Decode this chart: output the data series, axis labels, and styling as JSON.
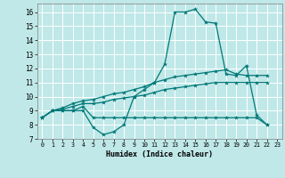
{
  "title": "",
  "xlabel": "Humidex (Indice chaleur)",
  "bg_color": "#c0e8e8",
  "grid_color": "#ffffff",
  "line_color": "#007878",
  "xlim": [
    -0.5,
    23.5
  ],
  "ylim": [
    7,
    16.6
  ],
  "xticks": [
    0,
    1,
    2,
    3,
    4,
    5,
    6,
    7,
    8,
    9,
    10,
    11,
    12,
    13,
    14,
    15,
    16,
    17,
    18,
    19,
    20,
    21,
    22,
    23
  ],
  "yticks": [
    7,
    8,
    9,
    10,
    11,
    12,
    13,
    14,
    15,
    16
  ],
  "curve1_x": [
    0,
    1,
    2,
    3,
    4,
    5,
    6,
    7,
    8,
    9,
    10,
    11,
    12,
    13,
    14,
    15,
    16,
    17,
    18,
    19,
    20,
    21,
    22
  ],
  "curve1_y": [
    8.5,
    9.0,
    9.0,
    9.0,
    9.0,
    7.8,
    7.3,
    7.5,
    8.0,
    10.0,
    10.5,
    11.0,
    12.3,
    16.0,
    16.0,
    16.2,
    15.3,
    15.2,
    11.6,
    11.5,
    12.2,
    8.7,
    8.0
  ],
  "curve2_x": [
    0,
    1,
    2,
    3,
    4,
    5,
    6,
    7,
    8,
    9,
    10,
    11,
    12,
    13,
    14,
    15,
    16,
    17,
    18,
    19,
    20,
    21,
    22
  ],
  "curve2_y": [
    8.5,
    9.0,
    9.0,
    9.0,
    9.3,
    8.5,
    8.5,
    8.5,
    8.5,
    8.5,
    8.5,
    8.5,
    8.5,
    8.5,
    8.5,
    8.5,
    8.5,
    8.5,
    8.5,
    8.5,
    8.5,
    8.5,
    8.0
  ],
  "curve3_x": [
    0,
    1,
    2,
    3,
    4,
    5,
    6,
    7,
    8,
    9,
    10,
    11,
    12,
    13,
    14,
    15,
    16,
    17,
    18,
    19,
    20,
    21,
    22
  ],
  "curve3_y": [
    8.5,
    9.0,
    9.2,
    9.5,
    9.7,
    9.8,
    10.0,
    10.2,
    10.3,
    10.5,
    10.7,
    11.0,
    11.2,
    11.4,
    11.5,
    11.6,
    11.7,
    11.8,
    11.9,
    11.6,
    11.5,
    11.5,
    11.5
  ],
  "curve4_x": [
    0,
    1,
    2,
    3,
    4,
    5,
    6,
    7,
    8,
    9,
    10,
    11,
    12,
    13,
    14,
    15,
    16,
    17,
    18,
    19,
    20,
    21,
    22
  ],
  "curve4_y": [
    8.5,
    9.0,
    9.1,
    9.3,
    9.5,
    9.5,
    9.6,
    9.8,
    9.9,
    10.0,
    10.1,
    10.3,
    10.5,
    10.6,
    10.7,
    10.8,
    10.9,
    11.0,
    11.0,
    11.0,
    11.0,
    11.0,
    11.0
  ]
}
